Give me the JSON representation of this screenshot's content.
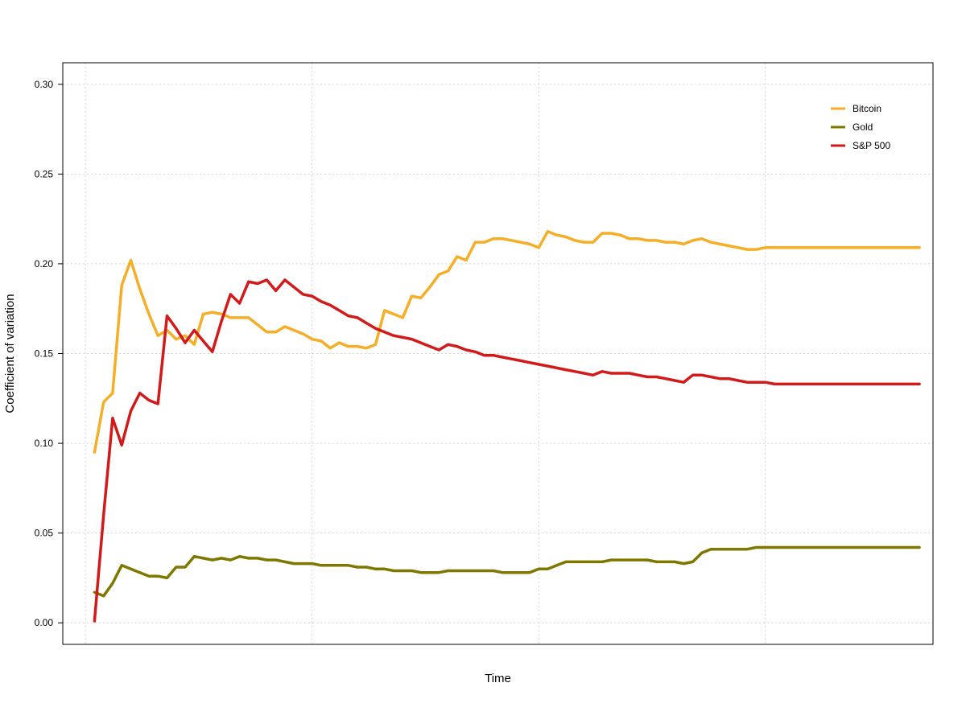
{
  "chart_data": {
    "type": "line",
    "title": "",
    "xlabel": "Time",
    "ylabel": "Coefficient of variation",
    "ylim": [
      -0.012,
      0.312
    ],
    "xlim": [
      -6,
      186
    ],
    "yticks": [
      "0.00",
      "0.05",
      "0.10",
      "0.15",
      "0.20",
      "0.25",
      "0.30"
    ],
    "ytick_values": [
      0.0,
      0.05,
      0.1,
      0.15,
      0.2,
      0.25,
      0.3
    ],
    "x_gridlines": [
      -1,
      49,
      99,
      149
    ],
    "grid": true,
    "legend_position": "top-right",
    "x": [
      1,
      3,
      5,
      7,
      9,
      11,
      13,
      15,
      17,
      19,
      21,
      23,
      25,
      27,
      29,
      31,
      33,
      35,
      37,
      39,
      41,
      43,
      45,
      47,
      49,
      51,
      53,
      55,
      57,
      59,
      61,
      63,
      65,
      67,
      69,
      71,
      73,
      75,
      77,
      79,
      81,
      83,
      85,
      87,
      89,
      91,
      93,
      95,
      97,
      99,
      101,
      103,
      105,
      107,
      109,
      111,
      113,
      115,
      117,
      119,
      121,
      123,
      125,
      127,
      129,
      131,
      133,
      135,
      137,
      139,
      141,
      143,
      145,
      147,
      149,
      151,
      153,
      155,
      157,
      159,
      161,
      163,
      165,
      167,
      169,
      171,
      173,
      175,
      177,
      179,
      181,
      183
    ],
    "series": [
      {
        "name": "Bitcoin",
        "color": "#F7AE27",
        "values": [
          0.095,
          0.123,
          0.128,
          0.188,
          0.202,
          0.186,
          0.172,
          0.16,
          0.163,
          0.158,
          0.16,
          0.155,
          0.172,
          0.173,
          0.172,
          0.17,
          0.17,
          0.17,
          0.166,
          0.162,
          0.162,
          0.165,
          0.163,
          0.161,
          0.158,
          0.157,
          0.153,
          0.156,
          0.154,
          0.154,
          0.153,
          0.155,
          0.174,
          0.172,
          0.17,
          0.182,
          0.181,
          0.187,
          0.194,
          0.196,
          0.204,
          0.202,
          0.212,
          0.212,
          0.214,
          0.214,
          0.213,
          0.212,
          0.211,
          0.209,
          0.218,
          0.216,
          0.215,
          0.213,
          0.212,
          0.212,
          0.217,
          0.217,
          0.216,
          0.214,
          0.214,
          0.213,
          0.213,
          0.212,
          0.212,
          0.211,
          0.213,
          0.214,
          0.212,
          0.211,
          0.21,
          0.209,
          0.208,
          0.208,
          0.209,
          0.209,
          0.209,
          0.209,
          0.209,
          0.209,
          0.209,
          0.209,
          0.209,
          0.209,
          0.209,
          0.209,
          0.209,
          0.209,
          0.209,
          0.209,
          0.209,
          0.209
        ]
      },
      {
        "name": "Gold",
        "color": "#7F7700",
        "values": [
          0.017,
          0.015,
          0.022,
          0.032,
          0.03,
          0.028,
          0.026,
          0.026,
          0.025,
          0.031,
          0.031,
          0.037,
          0.036,
          0.035,
          0.036,
          0.035,
          0.037,
          0.036,
          0.036,
          0.035,
          0.035,
          0.034,
          0.033,
          0.033,
          0.033,
          0.032,
          0.032,
          0.032,
          0.032,
          0.031,
          0.031,
          0.03,
          0.03,
          0.029,
          0.029,
          0.029,
          0.028,
          0.028,
          0.028,
          0.029,
          0.029,
          0.029,
          0.029,
          0.029,
          0.029,
          0.028,
          0.028,
          0.028,
          0.028,
          0.03,
          0.03,
          0.032,
          0.034,
          0.034,
          0.034,
          0.034,
          0.034,
          0.035,
          0.035,
          0.035,
          0.035,
          0.035,
          0.034,
          0.034,
          0.034,
          0.033,
          0.034,
          0.039,
          0.041,
          0.041,
          0.041,
          0.041,
          0.041,
          0.042,
          0.042,
          0.042,
          0.042,
          0.042,
          0.042,
          0.042,
          0.042,
          0.042,
          0.042,
          0.042,
          0.042,
          0.042,
          0.042,
          0.042,
          0.042,
          0.042,
          0.042,
          0.042
        ]
      },
      {
        "name": "S&P 500",
        "color": "#D21A1A",
        "values": [
          0.001,
          0.06,
          0.114,
          0.099,
          0.118,
          0.128,
          0.124,
          0.122,
          0.171,
          0.164,
          0.156,
          0.163,
          0.157,
          0.151,
          0.168,
          0.183,
          0.178,
          0.19,
          0.189,
          0.191,
          0.185,
          0.191,
          0.187,
          0.183,
          0.182,
          0.179,
          0.177,
          0.174,
          0.171,
          0.17,
          0.167,
          0.164,
          0.162,
          0.16,
          0.159,
          0.158,
          0.156,
          0.154,
          0.152,
          0.155,
          0.154,
          0.152,
          0.151,
          0.149,
          0.149,
          0.148,
          0.147,
          0.146,
          0.145,
          0.144,
          0.143,
          0.142,
          0.141,
          0.14,
          0.139,
          0.138,
          0.14,
          0.139,
          0.139,
          0.139,
          0.138,
          0.137,
          0.137,
          0.136,
          0.135,
          0.134,
          0.138,
          0.138,
          0.137,
          0.136,
          0.136,
          0.135,
          0.134,
          0.134,
          0.134,
          0.133,
          0.133,
          0.133,
          0.133,
          0.133,
          0.133,
          0.133,
          0.133,
          0.133,
          0.133,
          0.133,
          0.133,
          0.133,
          0.133,
          0.133,
          0.133,
          0.133
        ]
      }
    ]
  }
}
